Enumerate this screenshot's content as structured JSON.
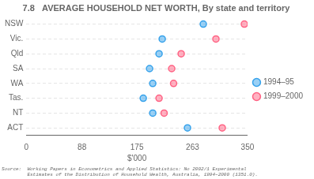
{
  "chart_data": {
    "type": "dot",
    "orientation": "horizontal",
    "title": "7.8   AVERAGE HOUSEHOLD NET WORTH, By state and territory",
    "categories": [
      "NSW",
      "Vic.",
      "Qld",
      "SA",
      "WA",
      "Tas.",
      "NT",
      "ACT"
    ],
    "series": [
      {
        "name": "1994–95",
        "marker": "circle",
        "values": [
          280,
          215,
          210,
          195,
          200,
          185,
          200,
          255
        ]
      },
      {
        "name": "1999–2000",
        "marker": "circle",
        "values": [
          345,
          300,
          245,
          230,
          233,
          210,
          218,
          310
        ]
      }
    ],
    "xlabel": "$'000",
    "xlim": [
      0,
      350
    ],
    "xticks": [
      0,
      88,
      175,
      263,
      350
    ],
    "grid": true,
    "legend": "right",
    "annotations": [
      "Source:  Working Papers in Econometrics and Applied Statistics: No 2002/1 Experimental",
      "         Estimates of the Distribution of Household Wealth, Australia, 1994–2000 (1351.0)."
    ]
  }
}
